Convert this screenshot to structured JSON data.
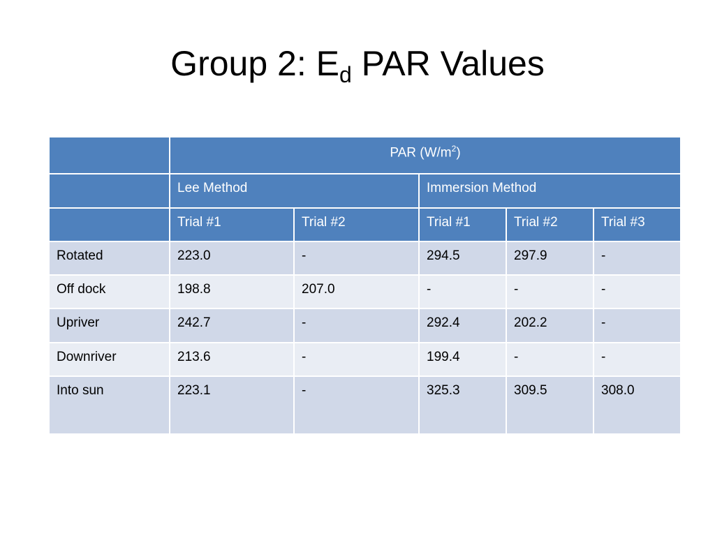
{
  "title": {
    "parts": [
      "Group 2: E",
      "d",
      " PAR Values"
    ]
  },
  "table": {
    "header": {
      "unit_parts": [
        "PAR (W/m",
        "2",
        ")"
      ],
      "methods": [
        {
          "label": "Lee Method",
          "trials": [
            "Trial #1",
            "Trial #2"
          ]
        },
        {
          "label": "Immersion Method",
          "trials": [
            "Trial #1",
            "Trial #2",
            "Trial #3"
          ]
        }
      ]
    },
    "rows": [
      {
        "label": "Rotated",
        "values": [
          "223.0",
          "-",
          "294.5",
          "297.9",
          "-"
        ]
      },
      {
        "label": "Off dock",
        "values": [
          "198.8",
          "207.0",
          "-",
          "-",
          "-"
        ]
      },
      {
        "label": "Upriver",
        "values": [
          "242.7",
          "-",
          "292.4",
          "202.2",
          "-"
        ]
      },
      {
        "label": "Downriver",
        "values": [
          "213.6",
          "-",
          "199.4",
          "-",
          "-"
        ]
      },
      {
        "label": "Into sun",
        "values": [
          "223.1",
          "-",
          "325.3",
          "309.5",
          "308.0"
        ]
      }
    ]
  }
}
